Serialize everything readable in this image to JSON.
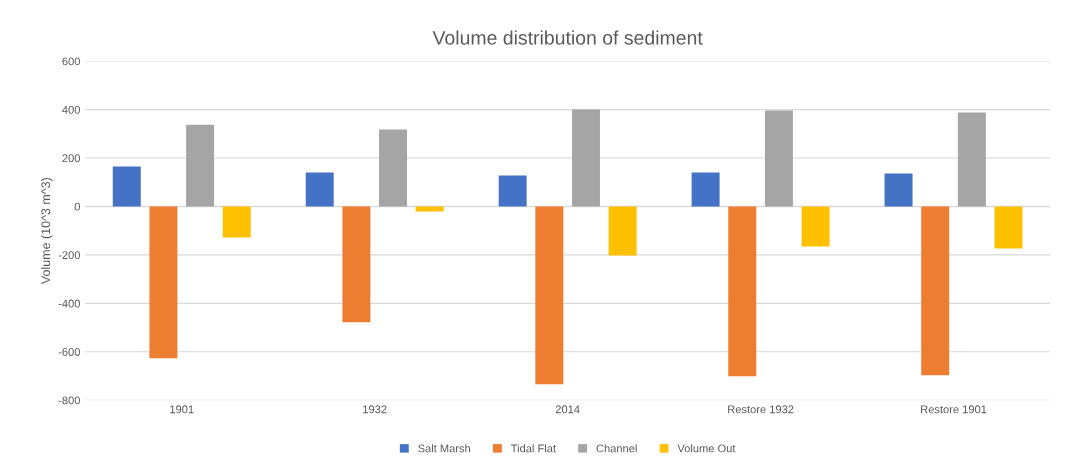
{
  "chart_data": {
    "type": "bar",
    "title": "Volume distribution of sediment",
    "ylabel": "Volume (10^3 m^3)",
    "categories": [
      "1901",
      "1932",
      "2014",
      "Restore 1932",
      "Restore 1901"
    ],
    "series": [
      {
        "name": "Salt Marsh",
        "color": "#4472c4",
        "values": [
          165,
          140,
          128,
          140,
          136
        ]
      },
      {
        "name": "Tidal Flat",
        "color": "#ed7d31",
        "values": [
          -627,
          -478,
          -734,
          -701,
          -697
        ]
      },
      {
        "name": "Channel",
        "color": "#a5a5a5",
        "values": [
          338,
          318,
          400,
          396,
          388
        ]
      },
      {
        "name": "Volume Out",
        "color": "#ffc000",
        "values": [
          -128,
          -21,
          -202,
          -165,
          -173
        ]
      }
    ],
    "ylim": [
      -800,
      600
    ],
    "yticks": [
      -800,
      -600,
      -400,
      -200,
      0,
      200,
      400,
      600
    ],
    "grid": "y",
    "legend": "bottom"
  }
}
